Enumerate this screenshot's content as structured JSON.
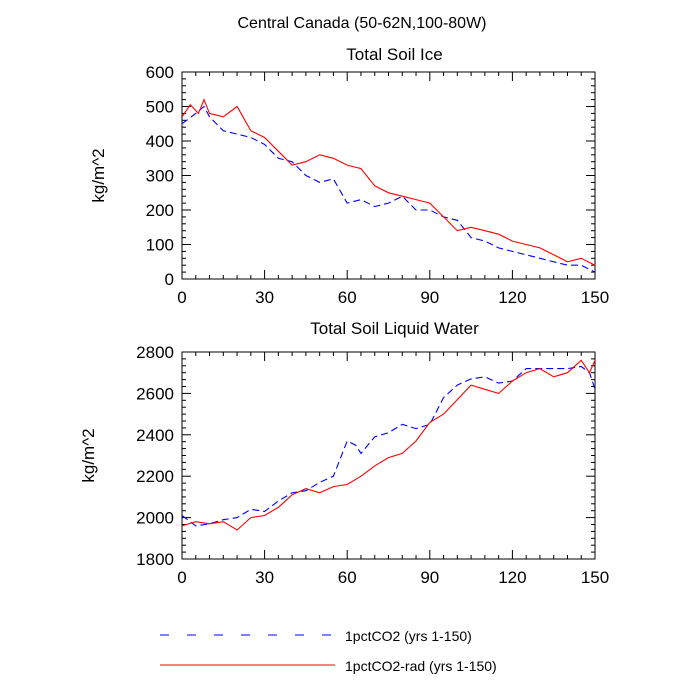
{
  "figure": {
    "title": "Central Canada (50-62N,100-80W)"
  },
  "legend": {
    "placement": "bottom",
    "entries": [
      {
        "label": "1pctCO2 (yrs 1-150)",
        "color": "#0000ff",
        "dash": "dashed"
      },
      {
        "label": "1pctCO2-rad (yrs 1-150)",
        "color": "#ff0000",
        "dash": "solid"
      }
    ]
  },
  "chart_data": [
    {
      "type": "line",
      "title": "Total Soil Ice",
      "xlabel": "",
      "ylabel": "kg/m^2",
      "xlim": [
        0,
        150
      ],
      "ylim": [
        0,
        600
      ],
      "xticks": [
        0,
        30,
        60,
        90,
        120,
        150
      ],
      "yticks": [
        0,
        100,
        200,
        300,
        400,
        500,
        600
      ],
      "grid": false,
      "series": [
        {
          "name": "1pctCO2 (yrs 1-150)",
          "color": "#0000ff",
          "dash": "dashed",
          "x": [
            0,
            5,
            8,
            10,
            15,
            20,
            25,
            30,
            35,
            40,
            45,
            50,
            55,
            60,
            65,
            70,
            75,
            80,
            85,
            90,
            95,
            100,
            105,
            110,
            115,
            120,
            125,
            130,
            135,
            140,
            145,
            150
          ],
          "y": [
            450,
            480,
            500,
            470,
            430,
            420,
            410,
            390,
            350,
            340,
            300,
            280,
            290,
            220,
            230,
            210,
            220,
            240,
            200,
            200,
            180,
            170,
            120,
            110,
            90,
            80,
            70,
            60,
            50,
            40,
            40,
            20
          ]
        },
        {
          "name": "1pctCO2-rad (yrs 1-150)",
          "color": "#ff0000",
          "dash": "solid",
          "x": [
            0,
            3,
            6,
            8,
            10,
            15,
            20,
            25,
            30,
            35,
            40,
            45,
            50,
            55,
            60,
            65,
            70,
            75,
            80,
            85,
            90,
            95,
            100,
            105,
            110,
            115,
            120,
            125,
            130,
            135,
            140,
            145,
            150
          ],
          "y": [
            470,
            505,
            480,
            520,
            480,
            470,
            500,
            430,
            410,
            370,
            330,
            340,
            360,
            350,
            330,
            320,
            270,
            250,
            240,
            230,
            220,
            180,
            140,
            150,
            140,
            130,
            110,
            100,
            90,
            70,
            50,
            60,
            40
          ]
        }
      ]
    },
    {
      "type": "line",
      "title": "Total Soil Liquid Water",
      "xlabel": "",
      "ylabel": "kg/m^2",
      "xlim": [
        0,
        150
      ],
      "ylim": [
        1800,
        2800
      ],
      "xticks": [
        0,
        30,
        60,
        90,
        120,
        150
      ],
      "yticks": [
        1800,
        2000,
        2200,
        2400,
        2600,
        2800
      ],
      "grid": false,
      "series": [
        {
          "name": "1pctCO2 (yrs 1-150)",
          "color": "#0000ff",
          "dash": "dashed",
          "x": [
            0,
            5,
            10,
            15,
            20,
            25,
            30,
            35,
            40,
            45,
            50,
            55,
            60,
            63,
            65,
            70,
            75,
            80,
            85,
            90,
            95,
            100,
            105,
            110,
            115,
            120,
            125,
            130,
            135,
            140,
            145,
            148,
            150
          ],
          "y": [
            2010,
            1960,
            1970,
            1990,
            2000,
            2040,
            2030,
            2080,
            2120,
            2130,
            2170,
            2200,
            2370,
            2350,
            2310,
            2390,
            2410,
            2450,
            2430,
            2450,
            2580,
            2640,
            2670,
            2680,
            2650,
            2660,
            2720,
            2720,
            2720,
            2720,
            2730,
            2700,
            2620
          ]
        },
        {
          "name": "1pctCO2-rad (yrs 1-150)",
          "color": "#ff0000",
          "dash": "solid",
          "x": [
            0,
            5,
            10,
            15,
            20,
            25,
            30,
            35,
            40,
            45,
            50,
            55,
            60,
            65,
            70,
            75,
            80,
            85,
            90,
            95,
            100,
            105,
            110,
            115,
            120,
            125,
            130,
            135,
            140,
            145,
            148,
            150
          ],
          "y": [
            1960,
            1980,
            1970,
            1980,
            1940,
            2000,
            2010,
            2050,
            2110,
            2140,
            2120,
            2150,
            2160,
            2200,
            2250,
            2290,
            2310,
            2370,
            2460,
            2500,
            2570,
            2640,
            2620,
            2600,
            2660,
            2700,
            2720,
            2680,
            2700,
            2760,
            2700,
            2760
          ]
        }
      ]
    }
  ]
}
